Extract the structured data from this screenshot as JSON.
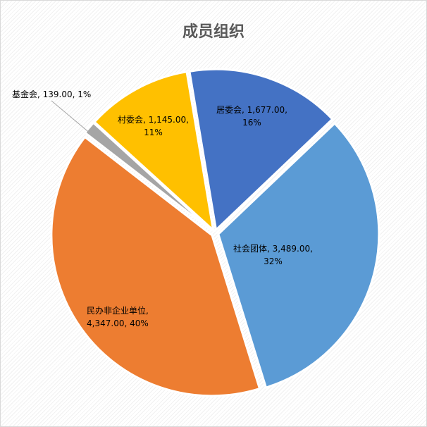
{
  "chart_data": {
    "type": "pie",
    "title": "成员组织",
    "slices": [
      {
        "label": "居委会",
        "value": 1677,
        "value_text": "1,677.00",
        "percent": "16%",
        "color": "#4472c4"
      },
      {
        "label": "社会团体",
        "value": 3489,
        "value_text": "3,489.00",
        "percent": "32%",
        "color": "#5b9bd5"
      },
      {
        "label": "民办非企业单位",
        "value": 4347,
        "value_text": "4,347.00",
        "percent": "40%",
        "color": "#ed7d31"
      },
      {
        "label": "基金会",
        "value": 139,
        "value_text": "139.00",
        "percent": "1%",
        "color": "#a5a5a5"
      },
      {
        "label": "村委会",
        "value": 1145,
        "value_text": "1,145.00",
        "percent": "11%",
        "color": "#ffc000"
      }
    ],
    "exploded": true,
    "legend": "none"
  }
}
